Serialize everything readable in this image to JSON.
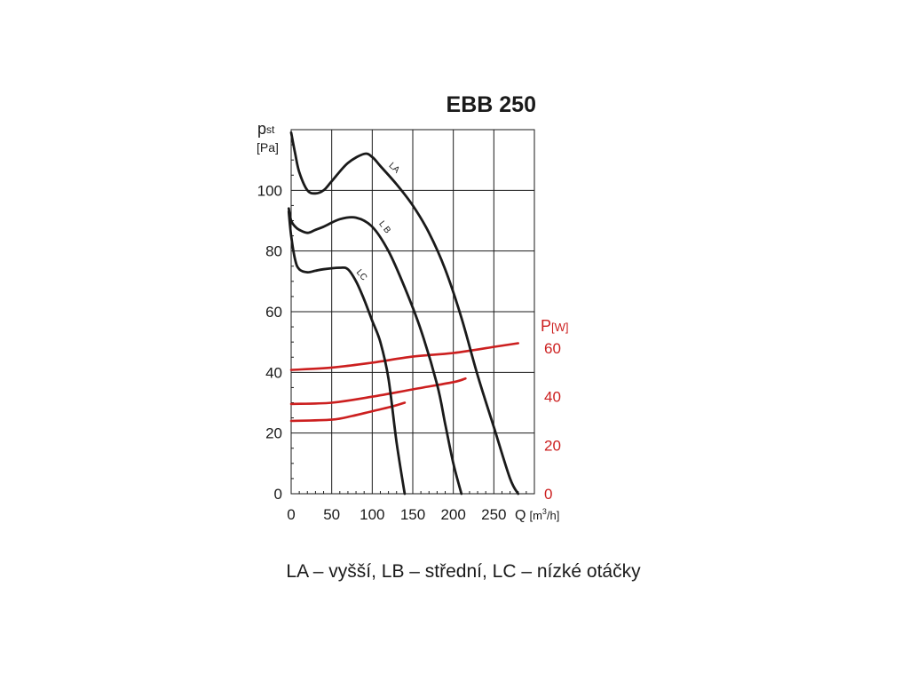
{
  "chart_data": {
    "type": "line",
    "title": "EBB 250",
    "caption": "LA – vyšší, LB – střední, LC – nízké otáčky",
    "grid": true,
    "x_axis": {
      "label": "Q",
      "unit_pre": "[m",
      "unit_sup": "3",
      "unit_post": "/h]",
      "range": [
        0,
        300
      ],
      "ticks": [
        0,
        50,
        100,
        150,
        200,
        250
      ]
    },
    "y_axis_left": {
      "label": "p",
      "label_sub": "st",
      "unit": "[Pa]",
      "range": [
        0,
        120
      ],
      "ticks": [
        0,
        20,
        40,
        60,
        80,
        100
      ]
    },
    "y_axis_right": {
      "label": "P",
      "unit": "[W]",
      "range": [
        0,
        150
      ],
      "ticks": [
        0,
        20,
        40,
        60
      ],
      "color": "#cc1f1f"
    },
    "pressure_series": [
      {
        "name": "LA",
        "color": "#1a1a1a",
        "x": [
          0,
          5,
          10,
          20,
          30,
          40,
          50,
          70,
          90,
          100,
          110,
          130,
          150,
          170,
          190,
          210,
          230,
          250,
          270,
          280
        ],
        "y": [
          119,
          112,
          106,
          100,
          99,
          100,
          103,
          109,
          112,
          111,
          108,
          102,
          95,
          86,
          74,
          58,
          39,
          22,
          5,
          0
        ]
      },
      {
        "name": "L B",
        "color": "#1a1a1a",
        "x": [
          -3,
          0,
          5,
          10,
          20,
          30,
          40,
          60,
          80,
          100,
          120,
          140,
          160,
          180,
          190,
          200,
          210
        ],
        "y": [
          94,
          90,
          88,
          87,
          86,
          87,
          88,
          90.5,
          91,
          88,
          80,
          68,
          54,
          36,
          23,
          10,
          0
        ]
      },
      {
        "name": "LC",
        "color": "#1a1a1a",
        "x": [
          -3,
          0,
          5,
          10,
          20,
          30,
          40,
          60,
          70,
          80,
          90,
          100,
          110,
          120,
          130,
          140
        ],
        "y": [
          93,
          85,
          77,
          74,
          73,
          73.5,
          74,
          74.5,
          74,
          70,
          64,
          57,
          50,
          38,
          17,
          0
        ]
      }
    ],
    "power_series": [
      {
        "name": "LA",
        "color": "#cc1f1f",
        "x": [
          0,
          50,
          100,
          150,
          200,
          250,
          280
        ],
        "y": [
          51,
          52,
          54,
          56.5,
          58,
          60.5,
          62
        ]
      },
      {
        "name": "LB",
        "color": "#cc1f1f",
        "x": [
          0,
          50,
          100,
          150,
          200,
          215
        ],
        "y": [
          37,
          37.5,
          40,
          43,
          46,
          47.5
        ]
      },
      {
        "name": "LC",
        "color": "#cc1f1f",
        "x": [
          0,
          50,
          75,
          100,
          125,
          140
        ],
        "y": [
          30,
          30.5,
          32,
          34,
          36,
          37.5
        ]
      }
    ]
  }
}
